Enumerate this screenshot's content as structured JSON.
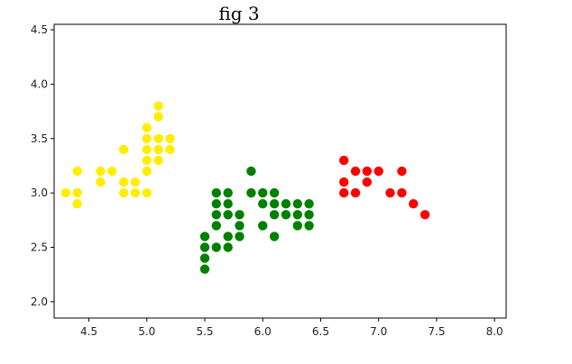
{
  "figure": {
    "caption": "fig 3"
  },
  "chart_data": {
    "type": "scatter",
    "title": "",
    "xlabel": "",
    "ylabel": "",
    "xlim": [
      4.2,
      8.1
    ],
    "ylim": [
      1.85,
      4.55
    ],
    "x_ticks": [
      4.5,
      5.0,
      5.5,
      6.0,
      6.5,
      7.0,
      7.5,
      8.0
    ],
    "x_tick_labels": [
      "4.5",
      "5.0",
      "5.5",
      "6.0",
      "6.5",
      "7.0",
      "7.5",
      "8.0"
    ],
    "y_ticks": [
      2.0,
      2.5,
      3.0,
      3.5,
      4.0,
      4.5
    ],
    "y_tick_labels": [
      "2.0",
      "2.5",
      "3.0",
      "3.5",
      "4.0",
      "4.5"
    ],
    "grid": false,
    "legend": "none",
    "series": [
      {
        "color": "#ffee00",
        "points": [
          [
            4.3,
            3.0
          ],
          [
            4.4,
            3.0
          ],
          [
            4.4,
            2.9
          ],
          [
            4.4,
            3.2
          ],
          [
            4.6,
            3.1
          ],
          [
            4.6,
            3.2
          ],
          [
            4.7,
            3.2
          ],
          [
            4.8,
            3.4
          ],
          [
            4.8,
            3.1
          ],
          [
            4.8,
            3.0
          ],
          [
            4.9,
            3.1
          ],
          [
            4.9,
            3.0
          ],
          [
            5.0,
            3.0
          ],
          [
            5.0,
            3.2
          ],
          [
            5.0,
            3.3
          ],
          [
            5.0,
            3.4
          ],
          [
            5.0,
            3.5
          ],
          [
            5.0,
            3.6
          ],
          [
            5.1,
            3.3
          ],
          [
            5.1,
            3.4
          ],
          [
            5.1,
            3.5
          ],
          [
            5.1,
            3.7
          ],
          [
            5.1,
            3.8
          ],
          [
            5.2,
            3.4
          ],
          [
            5.2,
            3.5
          ]
        ]
      },
      {
        "color": "#008000",
        "points": [
          [
            5.5,
            2.3
          ],
          [
            5.5,
            2.4
          ],
          [
            5.5,
            2.5
          ],
          [
            5.5,
            2.6
          ],
          [
            5.6,
            2.5
          ],
          [
            5.6,
            2.7
          ],
          [
            5.6,
            2.8
          ],
          [
            5.6,
            2.9
          ],
          [
            5.6,
            3.0
          ],
          [
            5.7,
            2.5
          ],
          [
            5.7,
            2.6
          ],
          [
            5.7,
            2.8
          ],
          [
            5.7,
            2.9
          ],
          [
            5.7,
            3.0
          ],
          [
            5.8,
            2.6
          ],
          [
            5.8,
            2.7
          ],
          [
            5.8,
            2.8
          ],
          [
            5.9,
            3.0
          ],
          [
            5.9,
            3.2
          ],
          [
            6.0,
            2.7
          ],
          [
            6.0,
            2.9
          ],
          [
            6.0,
            3.0
          ],
          [
            6.1,
            2.6
          ],
          [
            6.1,
            2.8
          ],
          [
            6.1,
            2.9
          ],
          [
            6.1,
            3.0
          ],
          [
            6.2,
            2.8
          ],
          [
            6.2,
            2.9
          ],
          [
            6.3,
            2.7
          ],
          [
            6.3,
            2.8
          ],
          [
            6.3,
            2.9
          ],
          [
            6.4,
            2.7
          ],
          [
            6.4,
            2.8
          ],
          [
            6.4,
            2.9
          ]
        ]
      },
      {
        "color": "#ff0000",
        "points": [
          [
            6.7,
            3.0
          ],
          [
            6.7,
            3.1
          ],
          [
            6.7,
            3.3
          ],
          [
            6.8,
            3.0
          ],
          [
            6.8,
            3.2
          ],
          [
            6.9,
            3.1
          ],
          [
            6.9,
            3.2
          ],
          [
            7.0,
            3.2
          ],
          [
            7.1,
            3.0
          ],
          [
            7.2,
            3.0
          ],
          [
            7.2,
            3.2
          ],
          [
            7.3,
            2.9
          ],
          [
            7.4,
            2.8
          ]
        ]
      }
    ]
  }
}
